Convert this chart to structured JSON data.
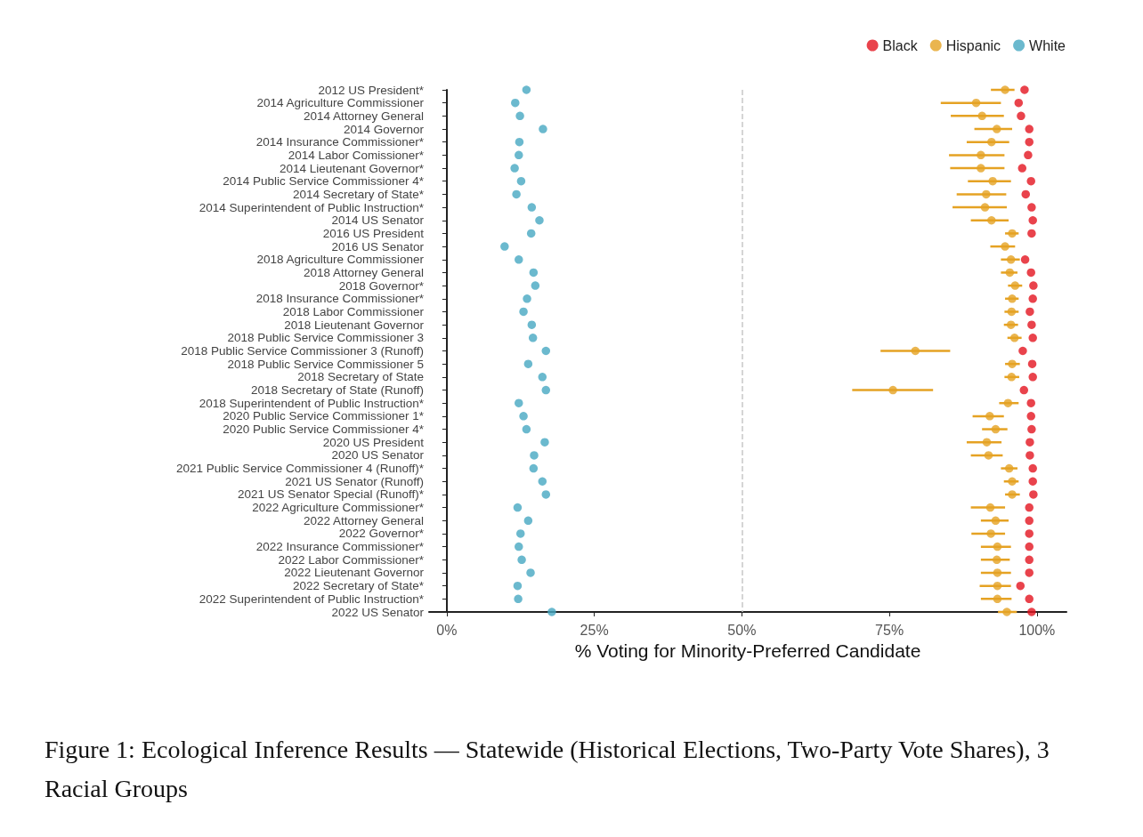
{
  "chart_data": {
    "type": "scatter",
    "orientation": "horizontal",
    "title": "Figure 1: Ecological Inference Results — Statewide (Historical Elections, Two-Party Vote Shares), 3 Racial Groups",
    "xlabel": "% Voting for Minority-Preferred Candidate",
    "categories": [
      "2012 US President*",
      "2014 Agriculture Commissioner",
      "2014 Attorney General",
      "2014 Governor",
      "2014 Insurance Commissioner*",
      "2014 Labor Comissioner*",
      "2014 Lieutenant Governor*",
      "2014 Public Service Commissioner 4*",
      "2014 Secretary of State*",
      "2014 Superintendent of Public Instruction*",
      "2014 US Senator",
      "2016 US President",
      "2016 US Senator",
      "2018 Agriculture Commissioner",
      "2018 Attorney General",
      "2018 Governor*",
      "2018 Insurance Commissioner*",
      "2018 Labor Commissioner",
      "2018 Lieutenant Governor",
      "2018 Public Service Commissioner 3",
      "2018 Public Service Commissioner 3 (Runoff)",
      "2018 Public Service Commissioner 5",
      "2018 Secretary of State",
      "2018 Secretary of State (Runoff)",
      "2018 Superintendent of Public Instruction*",
      "2020 Public Service Commissioner 1*",
      "2020 Public Service Commissioner 4*",
      "2020 US President",
      "2020 US Senator",
      "2021 Public Service Commissioner 4 (Runoff)*",
      "2021 US Senator (Runoff)",
      "2021 US Senator Special (Runoff)*",
      "2022 Agriculture Commissioner*",
      "2022 Attorney General",
      "2022 Governor*",
      "2022 Insurance Commissioner*",
      "2022 Labor Commissioner*",
      "2022 Lieutenant Governor",
      "2022 Secretary of State*",
      "2022 Superintendent of Public Instruction*",
      "2022 US Senator"
    ],
    "series": [
      {
        "name": "Black",
        "color": "#e3141f",
        "values": [
          97.9,
          96.9,
          97.3,
          98.7,
          98.7,
          98.5,
          97.5,
          99.0,
          98.1,
          99.1,
          99.3,
          99.1,
          null,
          98.0,
          99.0,
          99.4,
          99.3,
          98.8,
          99.1,
          99.3,
          97.6,
          99.2,
          99.3,
          97.8,
          99.0,
          99.0,
          99.1,
          98.8,
          98.8,
          99.3,
          99.3,
          99.4,
          98.7,
          98.7,
          98.7,
          98.7,
          98.7,
          98.7,
          97.2,
          98.7,
          99.1
        ]
      },
      {
        "name": "Hispanic",
        "color": "#e5a223",
        "values": [
          94.6,
          89.7,
          90.7,
          93.2,
          92.3,
          90.5,
          90.5,
          92.5,
          91.4,
          91.2,
          92.3,
          95.8,
          94.6,
          95.6,
          95.4,
          96.3,
          95.8,
          95.7,
          95.6,
          96.2,
          79.4,
          95.8,
          95.7,
          75.6,
          95.1,
          92.0,
          93.0,
          91.5,
          91.8,
          95.3,
          95.8,
          95.8,
          92.1,
          93.0,
          92.2,
          93.3,
          93.2,
          93.3,
          93.3,
          93.3,
          94.9
        ],
        "errors": [
          [
            92.2,
            96.2
          ],
          [
            83.7,
            93.9
          ],
          [
            85.4,
            94.4
          ],
          [
            89.4,
            95.8
          ],
          [
            88.1,
            95.3
          ],
          [
            85.1,
            94.5
          ],
          [
            85.3,
            94.5
          ],
          [
            88.3,
            95.6
          ],
          [
            86.4,
            94.8
          ],
          [
            85.7,
            94.9
          ],
          [
            88.8,
            95.2
          ],
          [
            94.6,
            96.9
          ],
          [
            92.1,
            96.3
          ],
          [
            93.9,
            97.1
          ],
          [
            93.9,
            96.7
          ],
          [
            95.1,
            97.5
          ],
          [
            94.6,
            96.9
          ],
          [
            94.5,
            96.9
          ],
          [
            94.4,
            96.8
          ],
          [
            95.0,
            97.4
          ],
          [
            73.5,
            85.3
          ],
          [
            94.6,
            97.1
          ],
          [
            94.5,
            97.0
          ],
          [
            68.7,
            82.4
          ],
          [
            93.6,
            96.9
          ],
          [
            89.1,
            94.4
          ],
          [
            90.7,
            95.0
          ],
          [
            88.1,
            94.0
          ],
          [
            88.8,
            94.2
          ],
          [
            93.9,
            96.7
          ],
          [
            94.4,
            96.9
          ],
          [
            94.6,
            97.1
          ],
          [
            88.8,
            94.6
          ],
          [
            90.5,
            95.2
          ],
          [
            88.9,
            94.6
          ],
          [
            90.5,
            95.6
          ],
          [
            90.5,
            95.4
          ],
          [
            90.5,
            95.6
          ],
          [
            90.3,
            95.6
          ],
          [
            90.5,
            95.7
          ],
          [
            93.4,
            96.6
          ]
        ]
      },
      {
        "name": "White",
        "color": "#46a7c2",
        "values": [
          13.5,
          11.6,
          12.4,
          16.3,
          12.3,
          12.2,
          11.5,
          12.6,
          11.8,
          14.4,
          15.7,
          14.3,
          9.8,
          12.2,
          14.7,
          15.0,
          13.6,
          13.0,
          14.4,
          14.6,
          16.8,
          13.8,
          16.2,
          16.8,
          12.2,
          13.0,
          13.5,
          16.6,
          14.8,
          14.7,
          16.2,
          16.8,
          12.0,
          13.8,
          12.5,
          12.2,
          12.7,
          14.2,
          12.0,
          12.1,
          17.8
        ]
      }
    ],
    "xlim": [
      -3,
      105
    ],
    "xticks": [
      {
        "value": 0,
        "label": "0%"
      },
      {
        "value": 25,
        "label": "25%"
      },
      {
        "value": 50,
        "label": "50%"
      },
      {
        "value": 75,
        "label": "75%"
      },
      {
        "value": 100,
        "label": "100%"
      }
    ],
    "ref_lines": [
      {
        "axis": "x",
        "value": 50,
        "color": "#c8c8c8",
        "line_style": "dashed"
      }
    ],
    "legend": "top right",
    "marker": "circle"
  }
}
